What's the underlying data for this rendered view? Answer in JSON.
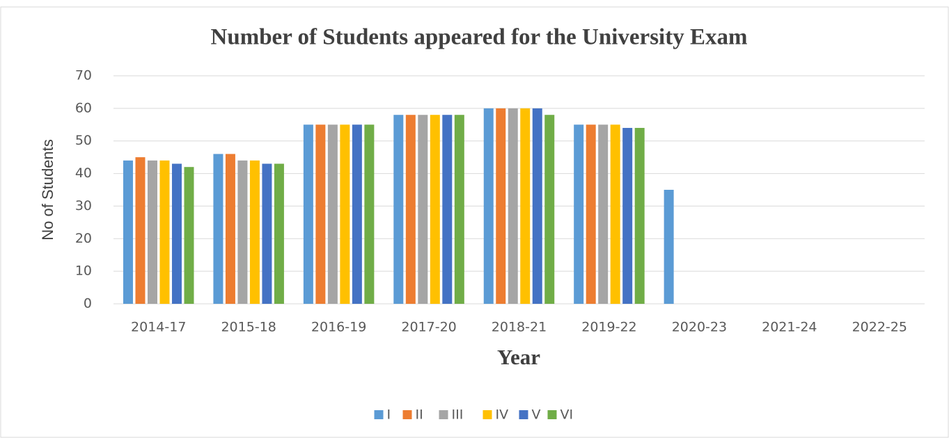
{
  "chart_data": {
    "type": "bar",
    "title": "Number of Students appeared for the University Exam",
    "x_label": "Year",
    "y_label": "No of Students",
    "categories": [
      "2014-17",
      "2015-18",
      "2016-19",
      "2017-20",
      "2018-21",
      "2019-22",
      "2020-23",
      "2021-24",
      "2022-25"
    ],
    "series": [
      {
        "name": "I",
        "color": "#5b9bd5",
        "values": [
          44,
          46,
          55,
          58,
          60,
          55,
          35,
          null,
          null
        ]
      },
      {
        "name": "II",
        "color": "#ed7d31",
        "values": [
          45,
          46,
          55,
          58,
          60,
          55,
          null,
          null,
          null
        ]
      },
      {
        "name": "III",
        "color": "#a5a5a5",
        "values": [
          44,
          44,
          55,
          58,
          60,
          55,
          null,
          null,
          null
        ]
      },
      {
        "name": "IV",
        "color": "#ffc000",
        "values": [
          44,
          44,
          55,
          58,
          60,
          55,
          null,
          null,
          null
        ]
      },
      {
        "name": "V",
        "color": "#4472c4",
        "values": [
          43,
          43,
          55,
          58,
          60,
          54,
          null,
          null,
          null
        ]
      },
      {
        "name": "VI",
        "color": "#70ad47",
        "values": [
          42,
          43,
          55,
          58,
          58,
          54,
          null,
          null,
          null
        ]
      }
    ],
    "ylim": [
      0,
      70
    ],
    "yticks": [
      0,
      10,
      20,
      30,
      40,
      50,
      60,
      70
    ],
    "grid": true,
    "legend": "bottom"
  }
}
